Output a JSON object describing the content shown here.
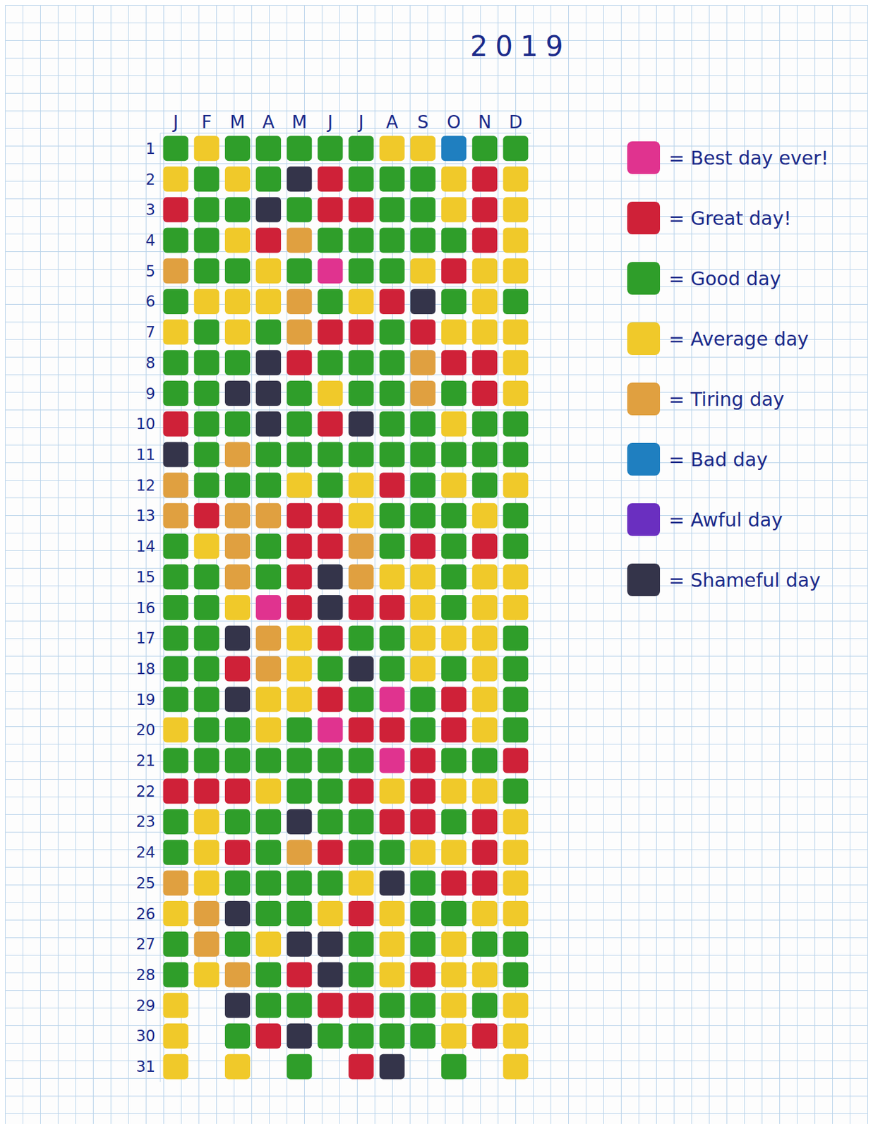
{
  "chart_data": {
    "type": "heatmap",
    "title": "2019",
    "x": [
      "J",
      "F",
      "M",
      "A",
      "M",
      "J",
      "J",
      "A",
      "S",
      "O",
      "N",
      "D"
    ],
    "y": [
      1,
      2,
      3,
      4,
      5,
      6,
      7,
      8,
      9,
      10,
      11,
      12,
      13,
      14,
      15,
      16,
      17,
      18,
      19,
      20,
      21,
      22,
      23,
      24,
      25,
      26,
      27,
      28,
      29,
      30,
      31
    ],
    "legend": "right",
    "legend_items": [
      {
        "name": "= Best day ever!",
        "color": "#e0338f"
      },
      {
        "name": "= Great day!",
        "color": "#cf2138"
      },
      {
        "name": "= Good day",
        "color": "#2f9e2a"
      },
      {
        "name": "= Average day",
        "color": "#f0c92a"
      },
      {
        "name": "= Tiring day",
        "color": "#e0a040"
      },
      {
        "name": "= Bad day",
        "color": "#1f7fc0"
      },
      {
        "name": "= Awful day",
        "color": "#6a2fc0"
      },
      {
        "name": "= Shameful day",
        "color": "#34344a"
      }
    ],
    "cells": [
      [
        2,
        3,
        2,
        2,
        2,
        2,
        2,
        3,
        3,
        5,
        2,
        2
      ],
      [
        3,
        2,
        3,
        2,
        7,
        1,
        2,
        2,
        2,
        3,
        1,
        3
      ],
      [
        1,
        2,
        2,
        7,
        2,
        1,
        1,
        2,
        2,
        3,
        1,
        3
      ],
      [
        2,
        2,
        3,
        1,
        4,
        2,
        2,
        2,
        2,
        2,
        1,
        3
      ],
      [
        4,
        2,
        2,
        3,
        2,
        0,
        2,
        2,
        3,
        1,
        3,
        3
      ],
      [
        2,
        3,
        3,
        3,
        4,
        2,
        3,
        1,
        7,
        2,
        3,
        2
      ],
      [
        3,
        2,
        3,
        2,
        4,
        1,
        1,
        2,
        1,
        3,
        3,
        3
      ],
      [
        2,
        2,
        2,
        7,
        1,
        2,
        2,
        2,
        4,
        1,
        1,
        3
      ],
      [
        2,
        2,
        7,
        7,
        2,
        3,
        2,
        2,
        4,
        2,
        1,
        3
      ],
      [
        1,
        2,
        2,
        7,
        2,
        1,
        7,
        2,
        2,
        3,
        2,
        2
      ],
      [
        7,
        2,
        4,
        2,
        2,
        2,
        2,
        2,
        2,
        2,
        2,
        2
      ],
      [
        4,
        2,
        2,
        2,
        3,
        2,
        3,
        1,
        2,
        3,
        2,
        3
      ],
      [
        4,
        1,
        4,
        4,
        1,
        1,
        3,
        2,
        2,
        2,
        3,
        2
      ],
      [
        2,
        3,
        4,
        2,
        1,
        1,
        4,
        2,
        1,
        2,
        1,
        2
      ],
      [
        2,
        2,
        4,
        2,
        1,
        7,
        4,
        3,
        3,
        2,
        3,
        3
      ],
      [
        2,
        2,
        3,
        0,
        1,
        7,
        1,
        1,
        3,
        2,
        3,
        3
      ],
      [
        2,
        2,
        7,
        4,
        3,
        1,
        2,
        2,
        3,
        3,
        3,
        2
      ],
      [
        2,
        2,
        1,
        4,
        3,
        2,
        7,
        2,
        3,
        2,
        3,
        2
      ],
      [
        2,
        2,
        7,
        3,
        3,
        1,
        2,
        0,
        2,
        1,
        3,
        2
      ],
      [
        3,
        2,
        2,
        3,
        2,
        0,
        1,
        1,
        2,
        1,
        3,
        2
      ],
      [
        2,
        2,
        2,
        2,
        2,
        2,
        2,
        0,
        1,
        2,
        2,
        1
      ],
      [
        1,
        1,
        1,
        3,
        2,
        2,
        1,
        3,
        1,
        3,
        3,
        2
      ],
      [
        2,
        3,
        2,
        2,
        7,
        2,
        2,
        1,
        1,
        2,
        1,
        3
      ],
      [
        2,
        3,
        1,
        2,
        4,
        1,
        2,
        2,
        3,
        3,
        1,
        3
      ],
      [
        4,
        3,
        2,
        2,
        2,
        2,
        3,
        7,
        2,
        1,
        1,
        3
      ],
      [
        3,
        4,
        7,
        2,
        2,
        3,
        1,
        3,
        2,
        2,
        3,
        3
      ],
      [
        2,
        4,
        2,
        3,
        7,
        7,
        2,
        3,
        2,
        3,
        2,
        2
      ],
      [
        2,
        3,
        4,
        2,
        1,
        7,
        2,
        3,
        1,
        3,
        3,
        2
      ],
      [
        3,
        null,
        7,
        2,
        2,
        1,
        1,
        2,
        2,
        3,
        2,
        3
      ],
      [
        3,
        null,
        2,
        1,
        7,
        2,
        2,
        2,
        2,
        3,
        1,
        3
      ],
      [
        3,
        null,
        3,
        null,
        2,
        null,
        1,
        7,
        null,
        2,
        null,
        3
      ]
    ]
  }
}
